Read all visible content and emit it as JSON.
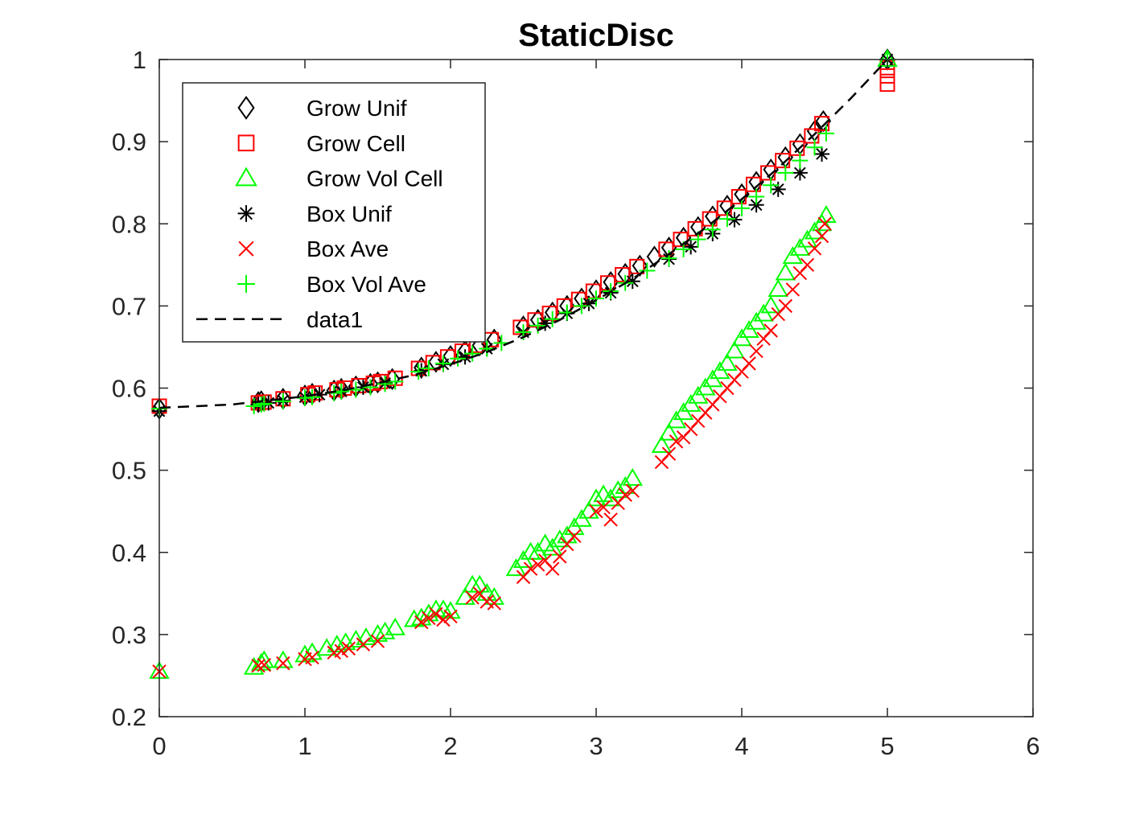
{
  "chart_data": {
    "type": "scatter",
    "title": "StaticDisc",
    "xlabel": "",
    "ylabel": "",
    "xlim": [
      0,
      6
    ],
    "ylim": [
      0.2,
      1
    ],
    "xticks": [
      "0",
      "1",
      "2",
      "3",
      "4",
      "5",
      "6"
    ],
    "yticks": [
      "0.2",
      "0.3",
      "0.4",
      "0.5",
      "0.6",
      "0.7",
      "0.8",
      "0.9",
      "1"
    ],
    "grid": false,
    "box": true,
    "legend_position": "top-left",
    "series": [
      {
        "name": "Grow Unif",
        "marker": "diamond",
        "color": "#000000",
        "x": [
          0,
          0.68,
          0.7,
          0.85,
          1.0,
          1.05,
          1.2,
          1.25,
          1.35,
          1.45,
          1.5,
          1.6,
          1.8,
          1.9,
          2.0,
          2.1,
          2.2,
          2.3,
          2.5,
          2.6,
          2.7,
          2.8,
          2.9,
          3.0,
          3.1,
          3.2,
          3.3,
          3.4,
          3.5,
          3.6,
          3.7,
          3.8,
          3.9,
          4.0,
          4.1,
          4.2,
          4.3,
          4.4,
          4.5,
          4.56,
          5.0
        ],
        "y": [
          0.575,
          0.583,
          0.584,
          0.587,
          0.591,
          0.593,
          0.597,
          0.599,
          0.602,
          0.605,
          0.607,
          0.611,
          0.625,
          0.632,
          0.639,
          0.645,
          0.652,
          0.659,
          0.675,
          0.683,
          0.692,
          0.7,
          0.709,
          0.719,
          0.729,
          0.739,
          0.749,
          0.76,
          0.771,
          0.783,
          0.796,
          0.809,
          0.822,
          0.836,
          0.851,
          0.866,
          0.881,
          0.897,
          0.913,
          0.925,
          1.0
        ]
      },
      {
        "name": "Grow Cell",
        "marker": "square",
        "color": "#ff0000",
        "x": [
          0,
          0.68,
          0.72,
          0.85,
          1.02,
          1.07,
          1.22,
          1.27,
          1.37,
          1.47,
          1.52,
          1.62,
          1.78,
          1.88,
          1.98,
          2.08,
          2.18,
          2.28,
          2.48,
          2.58,
          2.68,
          2.78,
          2.88,
          2.98,
          3.08,
          3.18,
          3.28,
          3.48,
          3.58,
          3.68,
          3.78,
          3.88,
          3.98,
          4.08,
          4.18,
          4.28,
          4.38,
          4.48,
          4.55,
          5.0,
          5.0,
          5.0
        ],
        "y": [
          0.578,
          0.582,
          0.583,
          0.587,
          0.592,
          0.594,
          0.598,
          0.6,
          0.603,
          0.606,
          0.608,
          0.612,
          0.624,
          0.631,
          0.638,
          0.645,
          0.652,
          0.659,
          0.674,
          0.683,
          0.691,
          0.7,
          0.708,
          0.718,
          0.728,
          0.738,
          0.748,
          0.769,
          0.781,
          0.794,
          0.806,
          0.819,
          0.833,
          0.848,
          0.862,
          0.877,
          0.892,
          0.907,
          0.922,
          0.99,
          0.97,
          0.98
        ]
      },
      {
        "name": "Grow Vol Cell",
        "marker": "triangle",
        "color": "#00ff00",
        "x": [
          0,
          0.65,
          0.7,
          0.72,
          0.85,
          1.0,
          1.05,
          1.15,
          1.22,
          1.28,
          1.35,
          1.42,
          1.5,
          1.55,
          1.62,
          1.75,
          1.8,
          1.85,
          1.9,
          1.95,
          2.0,
          2.1,
          2.15,
          2.2,
          2.25,
          2.3,
          2.45,
          2.5,
          2.55,
          2.6,
          2.65,
          2.7,
          2.75,
          2.8,
          2.85,
          2.9,
          2.95,
          3.0,
          3.05,
          3.1,
          3.15,
          3.2,
          3.25,
          3.45,
          3.5,
          3.55,
          3.6,
          3.65,
          3.7,
          3.75,
          3.8,
          3.85,
          3.9,
          3.95,
          4.0,
          4.05,
          4.1,
          4.15,
          4.2,
          4.25,
          4.3,
          4.35,
          4.4,
          4.45,
          4.5,
          4.55,
          4.58,
          5.0
        ],
        "y": [
          0.255,
          0.26,
          0.265,
          0.268,
          0.268,
          0.275,
          0.278,
          0.283,
          0.287,
          0.29,
          0.293,
          0.296,
          0.3,
          0.303,
          0.308,
          0.318,
          0.32,
          0.325,
          0.33,
          0.33,
          0.328,
          0.345,
          0.36,
          0.36,
          0.35,
          0.345,
          0.38,
          0.39,
          0.4,
          0.4,
          0.41,
          0.405,
          0.415,
          0.42,
          0.43,
          0.44,
          0.45,
          0.465,
          0.47,
          0.465,
          0.475,
          0.48,
          0.49,
          0.53,
          0.545,
          0.56,
          0.57,
          0.58,
          0.59,
          0.6,
          0.61,
          0.62,
          0.63,
          0.645,
          0.66,
          0.67,
          0.68,
          0.69,
          0.7,
          0.72,
          0.74,
          0.76,
          0.77,
          0.78,
          0.79,
          0.8,
          0.81,
          1.0
        ]
      },
      {
        "name": "Box Unif",
        "marker": "asterisk",
        "color": "#000000",
        "x": [
          0,
          0.68,
          0.75,
          0.85,
          1.0,
          1.1,
          1.25,
          1.4,
          1.55,
          1.8,
          1.95,
          2.1,
          2.25,
          2.5,
          2.65,
          2.8,
          2.95,
          3.1,
          3.25,
          3.5,
          3.65,
          3.8,
          3.95,
          4.1,
          4.25,
          4.4,
          4.55,
          5.0
        ],
        "y": [
          0.572,
          0.58,
          0.582,
          0.585,
          0.589,
          0.592,
          0.596,
          0.601,
          0.606,
          0.621,
          0.629,
          0.638,
          0.648,
          0.668,
          0.679,
          0.691,
          0.703,
          0.716,
          0.73,
          0.757,
          0.772,
          0.788,
          0.805,
          0.823,
          0.842,
          0.862,
          0.885,
          1.0
        ]
      },
      {
        "name": "Box Ave",
        "marker": "x",
        "color": "#ff0000",
        "x": [
          0,
          0.68,
          0.72,
          0.85,
          1.0,
          1.05,
          1.2,
          1.25,
          1.3,
          1.4,
          1.5,
          1.8,
          1.85,
          1.9,
          1.95,
          2.0,
          2.15,
          2.2,
          2.25,
          2.3,
          2.5,
          2.55,
          2.6,
          2.65,
          2.7,
          2.75,
          2.8,
          2.85,
          3.0,
          3.05,
          3.1,
          3.15,
          3.2,
          3.25,
          3.45,
          3.5,
          3.55,
          3.6,
          3.65,
          3.7,
          3.75,
          3.8,
          3.85,
          3.9,
          3.95,
          4.0,
          4.05,
          4.1,
          4.15,
          4.2,
          4.25,
          4.3,
          4.35,
          4.4,
          4.45,
          4.5,
          4.55,
          4.57
        ],
        "y": [
          0.255,
          0.262,
          0.263,
          0.265,
          0.27,
          0.272,
          0.278,
          0.28,
          0.283,
          0.288,
          0.292,
          0.315,
          0.32,
          0.325,
          0.318,
          0.322,
          0.345,
          0.35,
          0.34,
          0.338,
          0.37,
          0.38,
          0.385,
          0.39,
          0.38,
          0.395,
          0.41,
          0.42,
          0.45,
          0.455,
          0.44,
          0.46,
          0.47,
          0.475,
          0.51,
          0.52,
          0.535,
          0.54,
          0.55,
          0.56,
          0.57,
          0.58,
          0.59,
          0.6,
          0.61,
          0.62,
          0.63,
          0.645,
          0.66,
          0.67,
          0.69,
          0.7,
          0.72,
          0.74,
          0.75,
          0.77,
          0.785,
          0.8
        ]
      },
      {
        "name": "Box Vol Ave",
        "marker": "plus",
        "color": "#00ff00",
        "x": [
          0,
          0.65,
          0.7,
          0.72,
          0.85,
          1.0,
          1.05,
          1.2,
          1.25,
          1.35,
          1.45,
          1.55,
          1.62,
          1.78,
          1.85,
          1.95,
          2.05,
          2.15,
          2.25,
          2.35,
          2.5,
          2.6,
          2.7,
          2.8,
          2.9,
          3.0,
          3.1,
          3.2,
          3.35,
          3.5,
          3.6,
          3.7,
          3.8,
          3.9,
          4.0,
          4.1,
          4.2,
          4.3,
          4.4,
          4.5,
          4.58,
          5.0
        ],
        "y": [
          0.575,
          0.578,
          0.58,
          0.581,
          0.584,
          0.588,
          0.589,
          0.594,
          0.596,
          0.598,
          0.601,
          0.605,
          0.608,
          0.62,
          0.624,
          0.63,
          0.636,
          0.642,
          0.648,
          0.655,
          0.668,
          0.676,
          0.684,
          0.692,
          0.7,
          0.709,
          0.718,
          0.728,
          0.743,
          0.758,
          0.769,
          0.781,
          0.793,
          0.806,
          0.819,
          0.833,
          0.847,
          0.862,
          0.877,
          0.893,
          0.91,
          1.0
        ]
      },
      {
        "name": "data1",
        "marker": "dashed-line",
        "color": "#000000",
        "x": [
          0,
          0.25,
          0.5,
          0.75,
          1.0,
          1.25,
          1.5,
          1.75,
          2.0,
          2.25,
          2.5,
          2.75,
          3.0,
          3.25,
          3.5,
          3.75,
          4.0,
          4.25,
          4.5,
          4.75,
          5.0
        ],
        "y": [
          0.576,
          0.578,
          0.58,
          0.585,
          0.59,
          0.597,
          0.606,
          0.616,
          0.629,
          0.644,
          0.662,
          0.683,
          0.707,
          0.733,
          0.763,
          0.795,
          0.83,
          0.868,
          0.909,
          0.953,
          1.0
        ]
      }
    ]
  }
}
